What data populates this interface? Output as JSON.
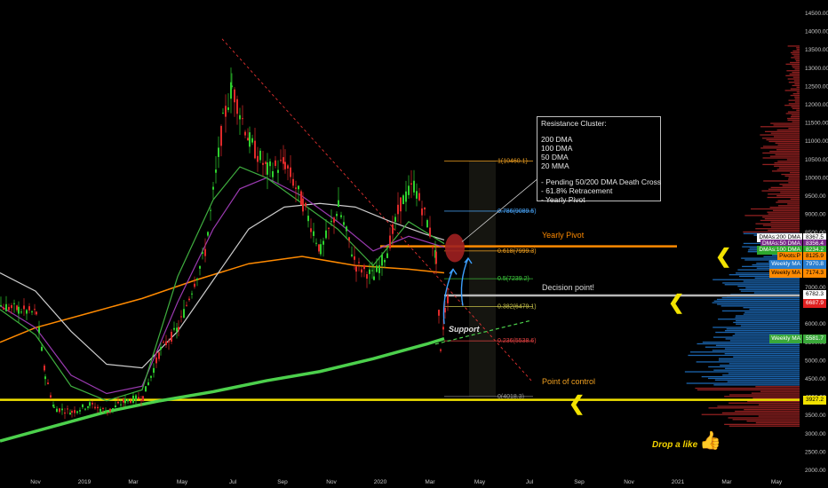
{
  "chart_data": {
    "type": "candlestick",
    "x_axis_labels": [
      "Nov",
      "2019",
      "Mar",
      "May",
      "Jul",
      "Sep",
      "Nov",
      "2020",
      "Mar",
      "May",
      "Jul",
      "Sep",
      "Nov",
      "2021",
      "Mar",
      "May"
    ],
    "y_axis_ticks": [
      "14500.00",
      "14000.00",
      "13500.00",
      "13000.00",
      "12500.00",
      "12000.00",
      "11500.00",
      "11000.00",
      "10500.00",
      "10000.00",
      "9500.00",
      "9000.00",
      "8500.00",
      "8000.00",
      "7500.00",
      "7000.00",
      "6500.00",
      "6000.00",
      "5500.00",
      "5000.00",
      "4500.00",
      "4000.00",
      "3500.00",
      "3000.00",
      "2500.00",
      "2000.00"
    ],
    "y_tick_values": [
      14500,
      14000,
      13500,
      13000,
      12500,
      12000,
      11500,
      11000,
      10500,
      10000,
      9500,
      9000,
      8500,
      8000,
      7500,
      7000,
      6500,
      6000,
      5500,
      5000,
      4500,
      4000,
      3500,
      3000,
      2500,
      2000
    ],
    "ylim": [
      1850,
      14750
    ],
    "fib_levels": [
      {
        "label": "1(10460.1)",
        "value": 10460.1,
        "color": "#f0a020"
      },
      {
        "label": "0.786(9089.5)",
        "value": 9089.5,
        "color": "#4aa8ff"
      },
      {
        "label": "0.618(7999.3)",
        "value": 7999.3,
        "color": "#f0a020"
      },
      {
        "label": "0.5(7239.2)",
        "value": 7239.2,
        "color": "#3ecf3e"
      },
      {
        "label": "0.382(6479.1)",
        "value": 6479.1,
        "color": "#c8c24a"
      },
      {
        "label": "0.236(5538.6)",
        "value": 5538.6,
        "color": "#e04040"
      },
      {
        "label": "0(4018.3)",
        "value": 4018.3,
        "color": "#9a9a9a"
      }
    ],
    "horizontal_levels": [
      {
        "name": "Yearly Pivot",
        "value": 8125,
        "color": "#ff8a00"
      },
      {
        "name": "Decision point!",
        "value": 6782,
        "color": "#b8b8b8"
      },
      {
        "name": "Point of control",
        "value": 3927,
        "color": "#f2e200"
      }
    ],
    "price_tags": [
      {
        "label": "DMAs:200 DMA",
        "price": "8367.5",
        "value": 8367.5,
        "bg": "#ffffff",
        "fg": "#000000",
        "pbg": "#ffffff"
      },
      {
        "label": "DMAs:50 DMA",
        "price": "8356.4",
        "value": 8200,
        "bg": "#7a2a8a",
        "fg": "#ffffff",
        "pbg": "#7a2a8a"
      },
      {
        "label": "DMAs:100 DMA",
        "price": "8234.2",
        "value": 8030,
        "bg": "#2ea82e",
        "fg": "#ffffff",
        "pbg": "#2ea82e"
      },
      {
        "label": "Pivots:P",
        "price": "8125.9",
        "value": 7860,
        "bg": "#ff8a00",
        "fg": "#000000",
        "pbg": "#ff8a00"
      },
      {
        "label": "Weekly MA",
        "price": "7970.8",
        "value": 7620,
        "bg": "#2a7fd0",
        "fg": "#ffffff",
        "pbg": "#2a7fd0"
      },
      {
        "label": "Weekly MA",
        "price": "7174.3",
        "value": 7380,
        "bg": "#ff8a00",
        "fg": "#000000",
        "pbg": "#ff8a00"
      },
      {
        "label": "",
        "price": "6782.3",
        "value": 6800,
        "bg": "#000000",
        "fg": "#ffffff",
        "pbg": "#ffffff"
      },
      {
        "label": "",
        "price": "6687.9",
        "value": 6560,
        "bg": "#000000",
        "fg": "#ffffff",
        "pbg": "#e02020"
      },
      {
        "label": "Weekly MA",
        "price": "5581.7",
        "value": 5581.7,
        "bg": "#3aa83a",
        "fg": "#ffffff",
        "pbg": "#3aa83a"
      },
      {
        "label": "",
        "price": "3927.2",
        "value": 3927.2,
        "bg": "#000000",
        "fg": "#000000",
        "pbg": "#f2e200"
      }
    ],
    "annotations": {
      "cluster_title": "Resistance Cluster:",
      "cluster_items": [
        "200 DMA",
        "100 DMA",
        "50 DMA",
        "20 MMA"
      ],
      "cluster_notes": [
        "- Pending 50/200 DMA Death Cross",
        "- 61.8% Retracement",
        "- Yearly Pivot"
      ],
      "yearly_pivot": "Yearly Pivot",
      "decision_point": "Decision point!",
      "point_of_control": "Point of control",
      "support": "Support",
      "drop_a_like": "Drop a like"
    }
  }
}
